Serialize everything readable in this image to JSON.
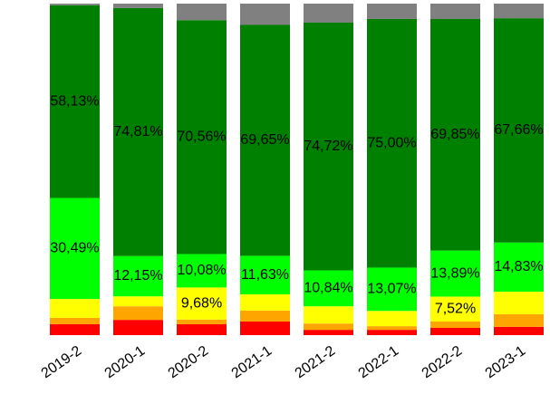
{
  "chart_data": {
    "type": "stacked_bar_100",
    "categories": [
      "2019-2",
      "2020-1",
      "2020-2",
      "2021-1",
      "2021-2",
      "2022-1",
      "2022-2",
      "2023-1"
    ],
    "ylim": [
      0,
      100
    ],
    "series": [
      {
        "color": "#ff0000",
        "values": [
          3.3,
          4.6,
          3.3,
          4.1,
          1.6,
          1.6,
          2.2,
          2.5
        ]
      },
      {
        "color": "#ffa500",
        "values": [
          1.9,
          4.1,
          1.4,
          3.3,
          1.9,
          1.1,
          1.9,
          3.8
        ]
      },
      {
        "color": "#ffff00",
        "values": [
          5.7,
          3.0,
          9.68,
          4.9,
          5.2,
          4.6,
          7.52,
          6.8
        ],
        "value_labels": [
          null,
          null,
          "9,68%",
          null,
          null,
          null,
          "7,52%",
          null
        ]
      },
      {
        "color": "#00ff00",
        "values": [
          30.49,
          12.15,
          10.08,
          11.63,
          10.84,
          13.07,
          13.89,
          14.83
        ],
        "value_labels": [
          "30,49%",
          "12,15%",
          "10,08%",
          "11,63%",
          "10,84%",
          "13,07%",
          "13,89%",
          "14,83%"
        ]
      },
      {
        "color": "#008000",
        "values": [
          58.13,
          74.81,
          70.56,
          69.65,
          74.72,
          75.0,
          69.85,
          67.66
        ],
        "value_labels": [
          "58,13%",
          "74,81%",
          "70,56%",
          "69,65%",
          "74,72%",
          "75,00%",
          "69,85%",
          "67,66%"
        ]
      },
      {
        "color": "#808080",
        "values": [
          0.48,
          1.34,
          4.98,
          6.42,
          5.74,
          4.63,
          4.64,
          4.41
        ]
      }
    ]
  }
}
